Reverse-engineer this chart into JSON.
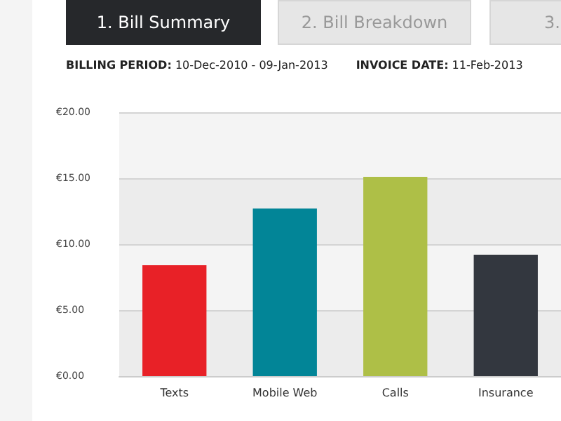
{
  "chart_data": {
    "type": "bar",
    "annotations": [
      "1. Bill Summary",
      "2. Bill Breakdown",
      "3.",
      "BILLING PERIOD: 10-Dec-2010 - 09-Jan-2013",
      "INVOICE DATE: 11-Feb-2013"
    ],
    "categories": [
      "Texts",
      "Mobile Web",
      "Calls",
      "Insurance"
    ],
    "values": [
      8.4,
      12.7,
      15.1,
      9.2
    ],
    "colors": [
      "#e82127",
      "#028597",
      "#aebf47",
      "#33373f"
    ],
    "ylim": [
      0,
      20
    ],
    "yticks": [
      {
        "value": 0,
        "label": "€0.00"
      },
      {
        "value": 5,
        "label": "€5.00"
      },
      {
        "value": 10,
        "label": "€10.00"
      },
      {
        "value": 15,
        "label": "€15.00"
      },
      {
        "value": 20,
        "label": "€20.00"
      }
    ],
    "grid": "y"
  }
}
